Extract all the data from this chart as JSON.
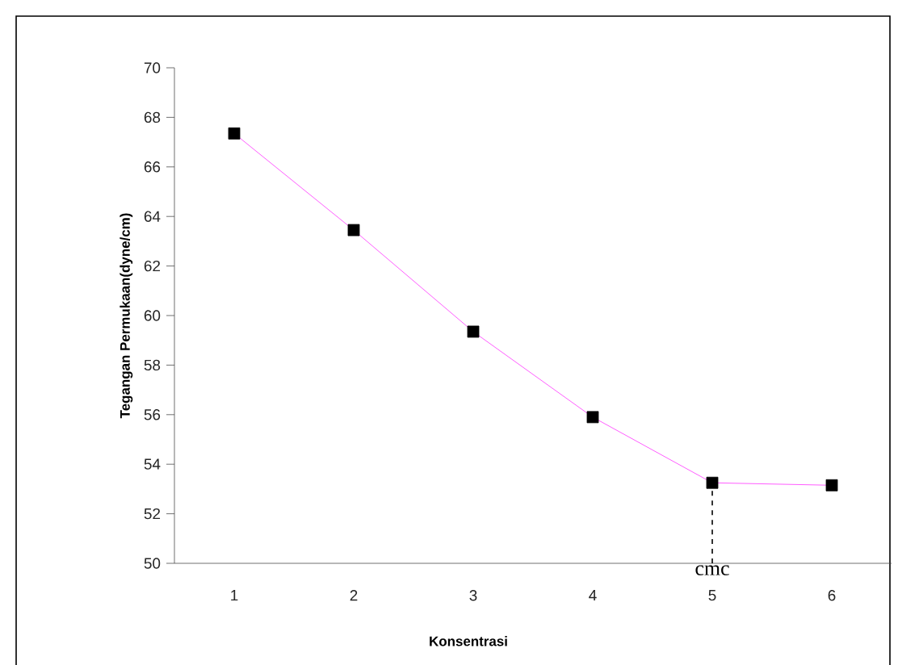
{
  "chart_data": {
    "type": "line",
    "xlabel": "Konsentrasi",
    "ylabel": "Tegangan Permukaan(dyne/cm)",
    "categories": [
      "1",
      "2",
      "3",
      "4",
      "5",
      "6"
    ],
    "series": [
      {
        "color": "#ff33ff",
        "values": [
          67.35,
          63.45,
          59.35,
          55.9,
          53.25,
          53.15
        ]
      }
    ],
    "marker": "square",
    "line_style": "solid",
    "grid": false,
    "ylim": [
      50,
      70
    ],
    "yticks": [
      50,
      52,
      54,
      56,
      58,
      60,
      62,
      64,
      66,
      68,
      70
    ],
    "ref_lines": [
      {
        "axis": "x",
        "value": "5",
        "label": "cmc",
        "line_style": "dashed",
        "color": "#000000"
      }
    ]
  }
}
